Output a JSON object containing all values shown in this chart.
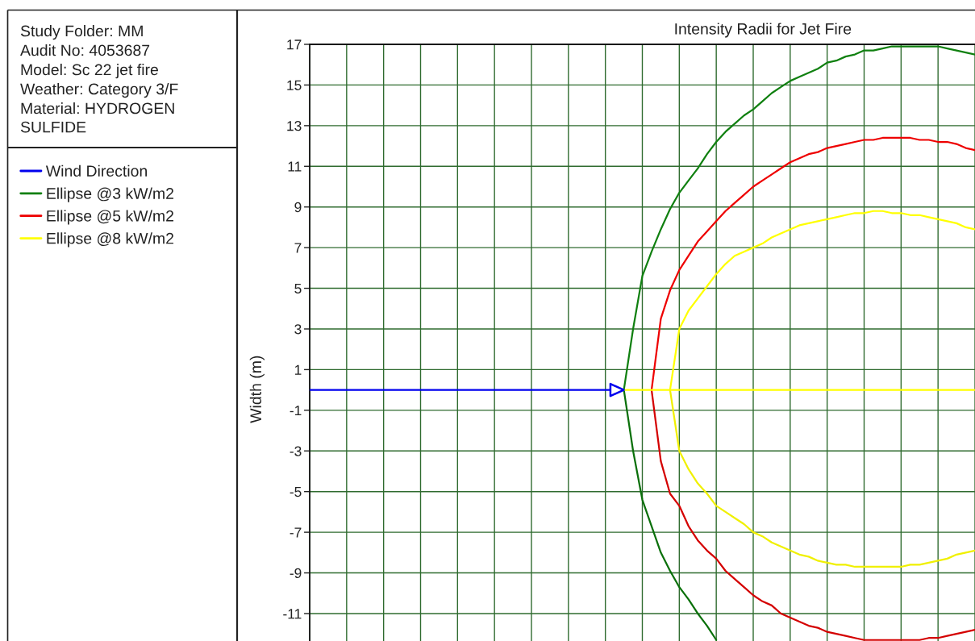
{
  "chart_data": {
    "type": "line",
    "title": "Intensity Radii for Jet Fire",
    "ylabel": "Width (m)",
    "annotations": [
      "Study Folder: MM",
      "Audit No: 4053687",
      "Model: Sc 22 jet fire",
      "Weather: Category 3/F",
      "Material: HYDROGEN SULFIDE"
    ],
    "categories": [
      null,
      null,
      null,
      null,
      null,
      null,
      null,
      null,
      null,
      null,
      null,
      null,
      null,
      null,
      null,
      null,
      null,
      null,
      null,
      null,
      null,
      null,
      null,
      null,
      null,
      null,
      null,
      null,
      null,
      null,
      null,
      null,
      null,
      null,
      null,
      null,
      null,
      null,
      null,
      null,
      null,
      null,
      null,
      null,
      null,
      null,
      null,
      null,
      null,
      null,
      null,
      null,
      null,
      null,
      null,
      null,
      null,
      null,
      null,
      null,
      null,
      null,
      null,
      null,
      null,
      null,
      null,
      null,
      null,
      null,
      null,
      null,
      null
    ],
    "ylim": [
      -12.35,
      17
    ],
    "yticks": [
      17,
      15,
      13,
      11,
      9,
      7,
      5,
      3,
      1,
      -1,
      -3,
      -5,
      -7,
      -9,
      -11
    ],
    "grid": true,
    "legend": "left",
    "tick_labels": "y",
    "series": [
      {
        "name": "Wind Direction",
        "color": "#0000ee",
        "values": [
          0,
          0,
          0,
          0,
          0,
          0,
          0,
          0,
          0,
          0,
          0,
          0,
          0,
          0,
          0,
          0,
          0,
          0,
          0,
          0,
          0,
          0,
          0,
          0,
          0,
          0,
          0,
          0,
          0,
          0,
          0,
          0,
          0,
          0,
          0,
          null,
          null,
          null,
          null,
          null,
          null,
          null,
          null,
          null,
          null,
          null,
          null,
          null,
          null,
          null,
          null,
          null,
          null,
          null,
          null,
          null,
          null,
          null,
          null,
          null,
          null,
          null,
          null,
          null,
          null,
          null,
          null,
          null,
          null,
          null,
          null,
          null,
          null
        ]
      },
      {
        "name": "Ellipse @3 kW/m2",
        "color": "#108010",
        "values": [
          null,
          null,
          null,
          null,
          null,
          null,
          null,
          null,
          null,
          null,
          null,
          null,
          null,
          null,
          null,
          null,
          null,
          null,
          null,
          null,
          null,
          null,
          null,
          null,
          null,
          null,
          null,
          null,
          null,
          null,
          null,
          null,
          null,
          null,
          0,
          3.0,
          5.6,
          6.8,
          7.9,
          8.9,
          9.7,
          10.3,
          10.9,
          11.6,
          12.2,
          12.7,
          13.1,
          13.5,
          13.8,
          14.2,
          14.6,
          14.9,
          15.2,
          15.4,
          15.6,
          15.8,
          16.1,
          16.2,
          16.4,
          16.5,
          16.7,
          16.7,
          16.8,
          16.9,
          16.9,
          16.9,
          16.9,
          16.9,
          16.9,
          16.8,
          16.7,
          16.6,
          16.5
        ]
      },
      {
        "color": "#0a700a",
        "values": [
          null,
          null,
          null,
          null,
          null,
          null,
          null,
          null,
          null,
          null,
          null,
          null,
          null,
          null,
          null,
          null,
          null,
          null,
          null,
          null,
          null,
          null,
          null,
          null,
          null,
          null,
          null,
          null,
          null,
          null,
          null,
          null,
          null,
          null,
          0,
          -3.0,
          -5.4,
          -6.7,
          -8.0,
          -8.9,
          -9.7,
          -10.3,
          -11.0,
          -11.6,
          -12.3,
          null,
          null,
          null,
          null,
          null,
          null,
          null,
          null,
          null,
          null,
          null,
          null,
          null,
          null,
          null,
          null,
          null,
          null,
          null,
          null,
          null,
          null,
          null,
          null,
          null,
          null,
          null,
          null
        ]
      },
      {
        "name": "Ellipse @5 kW/m2",
        "color": "#ee0000",
        "values": [
          null,
          null,
          null,
          null,
          null,
          null,
          null,
          null,
          null,
          null,
          null,
          null,
          null,
          null,
          null,
          null,
          null,
          null,
          null,
          null,
          null,
          null,
          null,
          null,
          null,
          null,
          null,
          null,
          null,
          null,
          null,
          null,
          null,
          null,
          null,
          null,
          null,
          0,
          3.5,
          4.9,
          5.9,
          6.6,
          7.3,
          7.8,
          8.3,
          8.8,
          9.2,
          9.6,
          10.0,
          10.3,
          10.6,
          10.9,
          11.2,
          11.4,
          11.6,
          11.7,
          11.9,
          12.0,
          12.1,
          12.2,
          12.3,
          12.3,
          12.4,
          12.4,
          12.4,
          12.4,
          12.3,
          12.3,
          12.2,
          12.2,
          12.1,
          11.9,
          11.8
        ]
      },
      {
        "color": "#d40000",
        "values": [
          null,
          null,
          null,
          null,
          null,
          null,
          null,
          null,
          null,
          null,
          null,
          null,
          null,
          null,
          null,
          null,
          null,
          null,
          null,
          null,
          null,
          null,
          null,
          null,
          null,
          null,
          null,
          null,
          null,
          null,
          null,
          null,
          null,
          null,
          null,
          null,
          null,
          0,
          -3.5,
          -5.1,
          -5.7,
          -6.7,
          -7.4,
          -7.9,
          -8.3,
          -8.9,
          -9.3,
          -9.7,
          -10.1,
          -10.4,
          -10.6,
          -11.0,
          -11.2,
          -11.4,
          -11.6,
          -11.7,
          -11.9,
          -12.0,
          -12.1,
          -12.2,
          -12.3,
          -12.3,
          -12.3,
          -12.3,
          -12.3,
          -12.3,
          -12.3,
          -12.2,
          -12.2,
          -12.1,
          -12.0,
          -11.9,
          -11.8
        ]
      },
      {
        "name": "Ellipse @8 kW/m2",
        "color": "#ffff00",
        "values": [
          null,
          null,
          null,
          null,
          null,
          null,
          null,
          null,
          null,
          null,
          null,
          null,
          null,
          null,
          null,
          null,
          null,
          null,
          null,
          null,
          null,
          null,
          null,
          null,
          null,
          null,
          null,
          null,
          null,
          null,
          null,
          null,
          null,
          null,
          null,
          null,
          null,
          null,
          null,
          0,
          3.0,
          3.9,
          4.5,
          5.1,
          5.7,
          6.2,
          6.6,
          6.8,
          7.0,
          7.2,
          7.5,
          7.7,
          7.9,
          8.1,
          8.2,
          8.3,
          8.4,
          8.5,
          8.6,
          8.7,
          8.7,
          8.8,
          8.8,
          8.7,
          8.7,
          8.6,
          8.6,
          8.5,
          8.4,
          8.3,
          8.2,
          8.0,
          7.9
        ]
      },
      {
        "color": "#f0f000",
        "values": [
          null,
          null,
          null,
          null,
          null,
          null,
          null,
          null,
          null,
          null,
          null,
          null,
          null,
          null,
          null,
          null,
          null,
          null,
          null,
          null,
          null,
          null,
          null,
          null,
          null,
          null,
          null,
          null,
          null,
          null,
          null,
          null,
          null,
          null,
          null,
          null,
          null,
          null,
          null,
          0,
          -3.0,
          -3.9,
          -4.6,
          -5.1,
          -5.7,
          -6.0,
          -6.3,
          -6.6,
          -7.0,
          -7.2,
          -7.5,
          -7.7,
          -7.9,
          -8.1,
          -8.2,
          -8.4,
          -8.5,
          -8.6,
          -8.6,
          -8.7,
          -8.7,
          -8.7,
          -8.7,
          -8.7,
          -8.7,
          -8.6,
          -8.6,
          -8.5,
          -8.4,
          -8.3,
          -8.1,
          -8.0,
          -7.9
        ]
      },
      {
        "color": "#ffff00",
        "values": [
          null,
          null,
          null,
          null,
          null,
          null,
          null,
          null,
          null,
          null,
          null,
          null,
          null,
          null,
          null,
          null,
          null,
          null,
          null,
          null,
          null,
          null,
          null,
          null,
          null,
          null,
          null,
          null,
          null,
          null,
          null,
          null,
          null,
          null,
          0,
          0,
          0,
          0,
          0,
          0,
          0,
          0,
          0,
          0,
          0,
          0,
          0,
          0,
          0,
          0,
          0,
          0,
          0,
          0,
          0,
          0,
          0,
          0,
          0,
          0,
          0,
          0,
          0,
          0,
          0,
          0,
          0,
          0,
          0,
          0,
          0,
          0,
          0
        ]
      }
    ]
  }
}
